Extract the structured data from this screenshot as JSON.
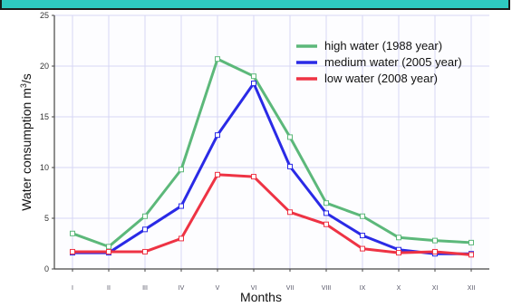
{
  "chart_data": {
    "type": "line",
    "xlabel": "Months",
    "ylabel": "Water consumption m",
    "ylabel_sup": "3",
    "ylabel_unit": "/s",
    "categories": [
      "I",
      "II",
      "III",
      "IV",
      "V",
      "VI",
      "VII",
      "VIII",
      "IX",
      "X",
      "XI",
      "XII"
    ],
    "y_ticks": [
      "0",
      "5",
      "10",
      "15",
      "20",
      "25"
    ],
    "ylim": [
      0,
      25
    ],
    "grid": true,
    "legend_position": "top-right",
    "series": [
      {
        "name": "high water (1988 year)",
        "color": "#5cb87a",
        "values": [
          3.5,
          2.2,
          5.2,
          9.8,
          20.7,
          19.0,
          13.0,
          6.5,
          5.2,
          3.1,
          2.8,
          2.6
        ]
      },
      {
        "name": "medium water (2005 year)",
        "color": "#2a2ae6",
        "values": [
          1.6,
          1.6,
          3.9,
          6.2,
          13.2,
          18.3,
          10.1,
          5.5,
          3.3,
          1.9,
          1.5,
          1.5
        ]
      },
      {
        "name": "low water (2008 year)",
        "color": "#ee3344",
        "values": [
          1.7,
          1.7,
          1.7,
          3.0,
          9.3,
          9.1,
          5.6,
          4.4,
          2.0,
          1.6,
          1.7,
          1.4
        ]
      }
    ]
  }
}
